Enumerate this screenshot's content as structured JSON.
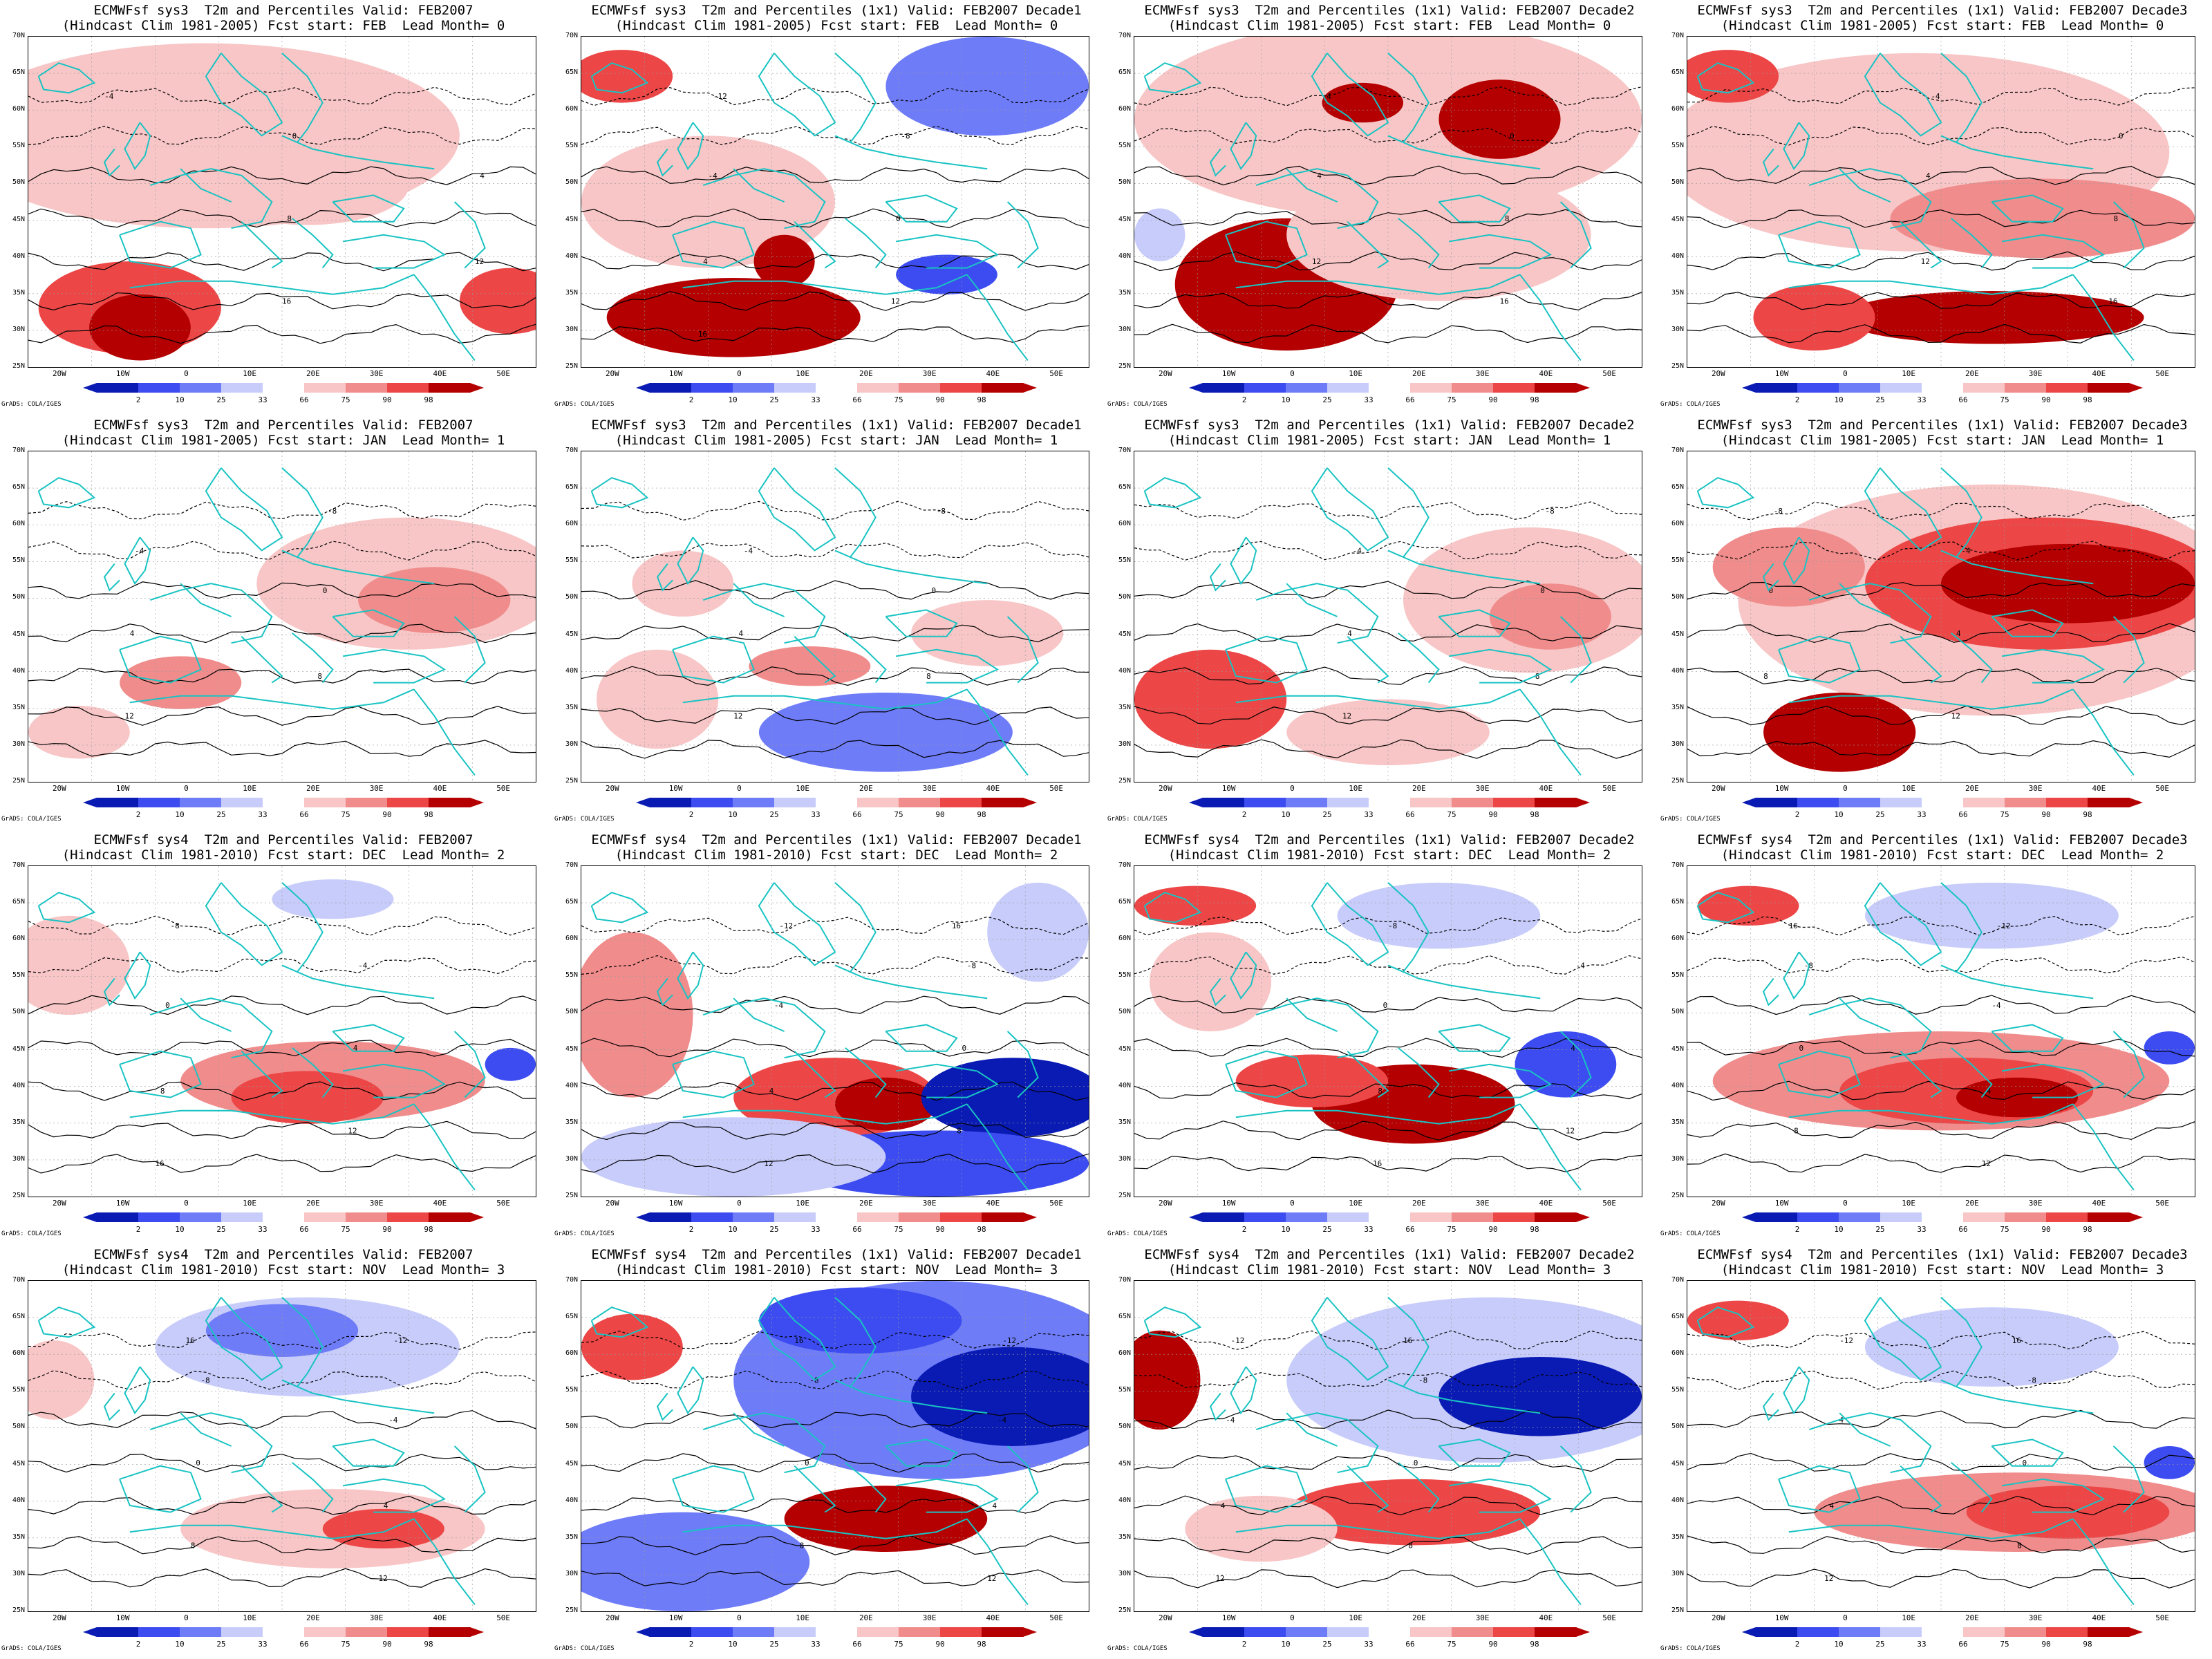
{
  "colors": {
    "dark_blue": "#0a1bb4",
    "mid_blue": "#3c4cf0",
    "blue": "#6e7cf8",
    "light_blue": "#c8ccfa",
    "white": "#ffffff",
    "light_red": "#f8c6c6",
    "red_light": "#f08c8c",
    "red": "#ec4646",
    "dark_red": "#b40000",
    "coast": "#19c3c3",
    "contour": "#000000"
  },
  "map": {
    "lat_labels": [
      "70N",
      "65N",
      "60N",
      "55N",
      "50N",
      "45N",
      "40N",
      "35N",
      "30N",
      "25N"
    ],
    "lon_labels": [
      "20W",
      "10W",
      "0",
      "10E",
      "20E",
      "30E",
      "40E",
      "50E"
    ],
    "colorbar_labels": [
      "2",
      "10",
      "25",
      "33",
      "66",
      "75",
      "90",
      "98"
    ],
    "credit": "GrADS: COLA/IGES"
  },
  "panels": [
    {
      "title1": "ECMWFsf sys3  T2m and Percentiles Valid: FEB2007",
      "title2": "(Hindcast Clim 1981-2005) Fcst start: FEB  Lead Month= 0",
      "anomaly": [
        [
          0.35,
          0.3,
          0.5,
          0.28,
          "light_red"
        ],
        [
          0.2,
          0.82,
          0.18,
          0.14,
          "red"
        ],
        [
          0.22,
          0.88,
          0.1,
          0.1,
          "dark_red"
        ],
        [
          0.55,
          0.45,
          0.2,
          0.12,
          "light_red"
        ],
        [
          0.95,
          0.8,
          0.1,
          0.1,
          "red"
        ]
      ],
      "contour_labels": [
        "-4",
        "0",
        "4",
        "8",
        "12",
        "16"
      ]
    },
    {
      "title1": "ECMWFsf sys3  T2m and Percentiles (1x1) Valid: FEB2007 Decade1",
      "title2": "(Hindcast Clim 1981-2005) Fcst start: FEB  Lead Month= 0",
      "anomaly": [
        [
          0.08,
          0.12,
          0.1,
          0.08,
          "red"
        ],
        [
          0.8,
          0.15,
          0.2,
          0.15,
          "blue"
        ],
        [
          0.72,
          0.72,
          0.1,
          0.06,
          "mid_blue"
        ],
        [
          0.3,
          0.85,
          0.25,
          0.12,
          "dark_red"
        ],
        [
          0.25,
          0.5,
          0.25,
          0.2,
          "light_red"
        ],
        [
          0.4,
          0.68,
          0.06,
          0.08,
          "dark_red"
        ]
      ],
      "contour_labels": [
        "-12",
        "-8",
        "-4",
        "0",
        "4",
        "12",
        "16"
      ]
    },
    {
      "title1": "ECMWFsf sys3  T2m and Percentiles (1x1) Valid: FEB2007 Decade2",
      "title2": "(Hindcast Clim 1981-2005) Fcst start: FEB  Lead Month= 0",
      "anomaly": [
        [
          0.5,
          0.25,
          0.5,
          0.3,
          "light_red"
        ],
        [
          0.72,
          0.25,
          0.12,
          0.12,
          "dark_red"
        ],
        [
          0.3,
          0.75,
          0.22,
          0.2,
          "dark_red"
        ],
        [
          0.6,
          0.6,
          0.3,
          0.2,
          "light_red"
        ],
        [
          0.45,
          0.2,
          0.08,
          0.06,
          "dark_red"
        ],
        [
          0.05,
          0.6,
          0.05,
          0.08,
          "light_blue"
        ]
      ],
      "contour_labels": [
        "-4",
        "0",
        "4",
        "8",
        "12",
        "16"
      ]
    },
    {
      "title1": "ECMWFsf sys3  T2m and Percentiles (1x1) Valid: FEB2007 Decade3",
      "title2": "(Hindcast Clim 1981-2005) Fcst start: FEB  Lead Month= 0",
      "anomaly": [
        [
          0.45,
          0.35,
          0.5,
          0.3,
          "light_red"
        ],
        [
          0.7,
          0.55,
          0.3,
          0.12,
          "red_light"
        ],
        [
          0.6,
          0.85,
          0.3,
          0.08,
          "dark_red"
        ],
        [
          0.25,
          0.85,
          0.12,
          0.1,
          "red"
        ],
        [
          0.08,
          0.12,
          0.1,
          0.08,
          "red"
        ]
      ],
      "contour_labels": [
        "-4",
        "0",
        "4",
        "8",
        "12",
        "16"
      ]
    },
    {
      "title1": "ECMWFsf sys3  T2m and Percentiles Valid: FEB2007",
      "title2": "(Hindcast Clim 1981-2005) Fcst start: JAN  Lead Month= 1",
      "anomaly": [
        [
          0.75,
          0.4,
          0.3,
          0.2,
          "light_red"
        ],
        [
          0.8,
          0.45,
          0.15,
          0.1,
          "red_light"
        ],
        [
          0.3,
          0.7,
          0.12,
          0.08,
          "red_light"
        ],
        [
          0.1,
          0.85,
          0.1,
          0.08,
          "light_red"
        ]
      ],
      "contour_labels": [
        "-8",
        "-4",
        "0",
        "4",
        "8",
        "12"
      ]
    },
    {
      "title1": "ECMWFsf sys3  T2m and Percentiles (1x1) Valid: FEB2007 Decade1",
      "title2": "(Hindcast Clim 1981-2005) Fcst start: JAN  Lead Month= 1",
      "anomaly": [
        [
          0.15,
          0.75,
          0.12,
          0.15,
          "light_red"
        ],
        [
          0.6,
          0.85,
          0.25,
          0.12,
          "blue"
        ],
        [
          0.45,
          0.65,
          0.12,
          0.06,
          "red_light"
        ],
        [
          0.8,
          0.55,
          0.15,
          0.1,
          "light_red"
        ],
        [
          0.2,
          0.4,
          0.1,
          0.1,
          "light_red"
        ]
      ],
      "contour_labels": [
        "-8",
        "-4",
        "0",
        "4",
        "8",
        "12"
      ]
    },
    {
      "title1": "ECMWFsf sys3  T2m and Percentiles (1x1) Valid: FEB2007 Decade2",
      "title2": "(Hindcast Clim 1981-2005) Fcst start: JAN  Lead Month= 1",
      "anomaly": [
        [
          0.78,
          0.45,
          0.25,
          0.22,
          "light_red"
        ],
        [
          0.82,
          0.5,
          0.12,
          0.1,
          "red_light"
        ],
        [
          0.15,
          0.75,
          0.15,
          0.15,
          "red"
        ],
        [
          0.5,
          0.85,
          0.2,
          0.1,
          "light_red"
        ]
      ],
      "contour_labels": [
        "-8",
        "-4",
        "0",
        "4",
        "8",
        "12"
      ]
    },
    {
      "title1": "ECMWFsf sys3  T2m and Percentiles (1x1) Valid: FEB2007 Decade3",
      "title2": "(Hindcast Clim 1981-2005) Fcst start: JAN  Lead Month= 1",
      "anomaly": [
        [
          0.6,
          0.45,
          0.5,
          0.35,
          "light_red"
        ],
        [
          0.7,
          0.4,
          0.35,
          0.2,
          "red"
        ],
        [
          0.75,
          0.4,
          0.25,
          0.12,
          "dark_red"
        ],
        [
          0.3,
          0.85,
          0.15,
          0.12,
          "dark_red"
        ],
        [
          0.2,
          0.35,
          0.15,
          0.12,
          "red_light"
        ]
      ],
      "contour_labels": [
        "-8",
        "-4",
        "0",
        "4",
        "8",
        "12"
      ]
    },
    {
      "title1": "ECMWFsf sys4  T2m and Percentiles Valid: FEB2007",
      "title2": "(Hindcast Clim 1981-2010) Fcst start: DEC  Lead Month= 2",
      "anomaly": [
        [
          0.08,
          0.3,
          0.12,
          0.15,
          "light_red"
        ],
        [
          0.6,
          0.65,
          0.3,
          0.12,
          "red_light"
        ],
        [
          0.55,
          0.7,
          0.15,
          0.08,
          "red"
        ],
        [
          0.6,
          0.1,
          0.12,
          0.06,
          "light_blue"
        ],
        [
          0.95,
          0.6,
          0.05,
          0.05,
          "mid_blue"
        ]
      ],
      "contour_labels": [
        "-8",
        "-4",
        "0",
        "4",
        "8",
        "12",
        "16"
      ]
    },
    {
      "title1": "ECMWFsf sys4  T2m and Percentiles (1x1) Valid: FEB2007 Decade1",
      "title2": "(Hindcast Clim 1981-2010) Fcst start: DEC  Lead Month= 2",
      "anomaly": [
        [
          0.1,
          0.45,
          0.12,
          0.25,
          "red_light"
        ],
        [
          0.5,
          0.7,
          0.2,
          0.12,
          "red"
        ],
        [
          0.6,
          0.72,
          0.1,
          0.08,
          "dark_red"
        ],
        [
          0.85,
          0.7,
          0.18,
          0.12,
          "dark_blue"
        ],
        [
          0.7,
          0.9,
          0.3,
          0.1,
          "mid_blue"
        ],
        [
          0.3,
          0.88,
          0.3,
          0.12,
          "light_blue"
        ],
        [
          0.9,
          0.2,
          0.1,
          0.15,
          "light_blue"
        ]
      ],
      "contour_labels": [
        "-12",
        "-8",
        "-4",
        "0",
        "4",
        "8",
        "12",
        "16"
      ]
    },
    {
      "title1": "ECMWFsf sys4  T2m and Percentiles (1x1) Valid: FEB2007 Decade2",
      "title2": "(Hindcast Clim 1981-2010) Fcst start: DEC  Lead Month= 2",
      "anomaly": [
        [
          0.12,
          0.12,
          0.12,
          0.06,
          "red"
        ],
        [
          0.55,
          0.72,
          0.2,
          0.12,
          "dark_red"
        ],
        [
          0.35,
          0.65,
          0.15,
          0.08,
          "red"
        ],
        [
          0.85,
          0.6,
          0.1,
          0.1,
          "mid_blue"
        ],
        [
          0.6,
          0.15,
          0.2,
          0.1,
          "light_blue"
        ],
        [
          0.15,
          0.35,
          0.12,
          0.15,
          "light_red"
        ]
      ],
      "contour_labels": [
        "-8",
        "-4",
        "0",
        "4",
        "8",
        "12",
        "16"
      ]
    },
    {
      "title1": "ECMWFsf sys4  T2m and Percentiles (1x1) Valid: FEB2007 Decade3",
      "title2": "(Hindcast Clim 1981-2010) Fcst start: DEC  Lead Month= 2",
      "anomaly": [
        [
          0.5,
          0.65,
          0.45,
          0.15,
          "red_light"
        ],
        [
          0.55,
          0.68,
          0.25,
          0.1,
          "red"
        ],
        [
          0.65,
          0.7,
          0.12,
          0.06,
          "dark_red"
        ],
        [
          0.6,
          0.15,
          0.25,
          0.1,
          "light_blue"
        ],
        [
          0.12,
          0.12,
          0.1,
          0.06,
          "red"
        ],
        [
          0.95,
          0.55,
          0.05,
          0.05,
          "mid_blue"
        ]
      ],
      "contour_labels": [
        "-12",
        "-8",
        "-4",
        "0",
        "4",
        "8",
        "12",
        "16"
      ]
    },
    {
      "title1": "ECMWFsf sys4  T2m and Percentiles Valid: FEB2007",
      "title2": "(Hindcast Clim 1981-2010) Fcst start: NOV  Lead Month= 3",
      "anomaly": [
        [
          0.55,
          0.2,
          0.3,
          0.15,
          "light_blue"
        ],
        [
          0.5,
          0.15,
          0.15,
          0.08,
          "blue"
        ],
        [
          0.6,
          0.75,
          0.3,
          0.12,
          "light_red"
        ],
        [
          0.7,
          0.75,
          0.12,
          0.06,
          "red"
        ],
        [
          0.05,
          0.3,
          0.08,
          0.12,
          "light_red"
        ]
      ],
      "contour_labels": [
        "-12",
        "-8",
        "-4",
        "0",
        "4",
        "8",
        "12",
        "16"
      ]
    },
    {
      "title1": "ECMWFsf sys4  T2m and Percentiles (1x1) Valid: FEB2007 Decade1",
      "title2": "(Hindcast Clim 1981-2010) Fcst start: NOV  Lead Month= 3",
      "anomaly": [
        [
          0.7,
          0.3,
          0.4,
          0.3,
          "blue"
        ],
        [
          0.85,
          0.35,
          0.2,
          0.15,
          "dark_blue"
        ],
        [
          0.55,
          0.12,
          0.2,
          0.1,
          "mid_blue"
        ],
        [
          0.6,
          0.72,
          0.2,
          0.1,
          "dark_red"
        ],
        [
          0.2,
          0.85,
          0.25,
          0.15,
          "blue"
        ],
        [
          0.1,
          0.2,
          0.1,
          0.1,
          "red"
        ]
      ],
      "contour_labels": [
        "-12",
        "-8",
        "-4",
        "0",
        "4",
        "8",
        "12",
        "16"
      ]
    },
    {
      "title1": "ECMWFsf sys4  T2m and Percentiles (1x1) Valid: FEB2007 Decade2",
      "title2": "(Hindcast Clim 1981-2010) Fcst start: NOV  Lead Month= 3",
      "anomaly": [
        [
          0.7,
          0.3,
          0.4,
          0.25,
          "light_blue"
        ],
        [
          0.8,
          0.35,
          0.2,
          0.12,
          "dark_blue"
        ],
        [
          0.05,
          0.3,
          0.08,
          0.15,
          "dark_red"
        ],
        [
          0.55,
          0.7,
          0.25,
          0.1,
          "red"
        ],
        [
          0.25,
          0.75,
          0.15,
          0.1,
          "light_red"
        ]
      ],
      "contour_labels": [
        "-12",
        "-8",
        "-4",
        "0",
        "4",
        "8",
        "12",
        "16"
      ]
    },
    {
      "title1": "ECMWFsf sys4  T2m and Percentiles (1x1) Valid: FEB2007 Decade3",
      "title2": "(Hindcast Clim 1981-2010) Fcst start: NOV  Lead Month= 3",
      "anomaly": [
        [
          0.6,
          0.2,
          0.25,
          0.12,
          "light_blue"
        ],
        [
          0.65,
          0.7,
          0.4,
          0.12,
          "red_light"
        ],
        [
          0.75,
          0.7,
          0.2,
          0.08,
          "red"
        ],
        [
          0.1,
          0.12,
          0.1,
          0.06,
          "red"
        ],
        [
          0.95,
          0.55,
          0.05,
          0.05,
          "mid_blue"
        ]
      ],
      "contour_labels": [
        "-12",
        "-8",
        "-4",
        "0",
        "4",
        "8",
        "12",
        "16"
      ]
    }
  ]
}
